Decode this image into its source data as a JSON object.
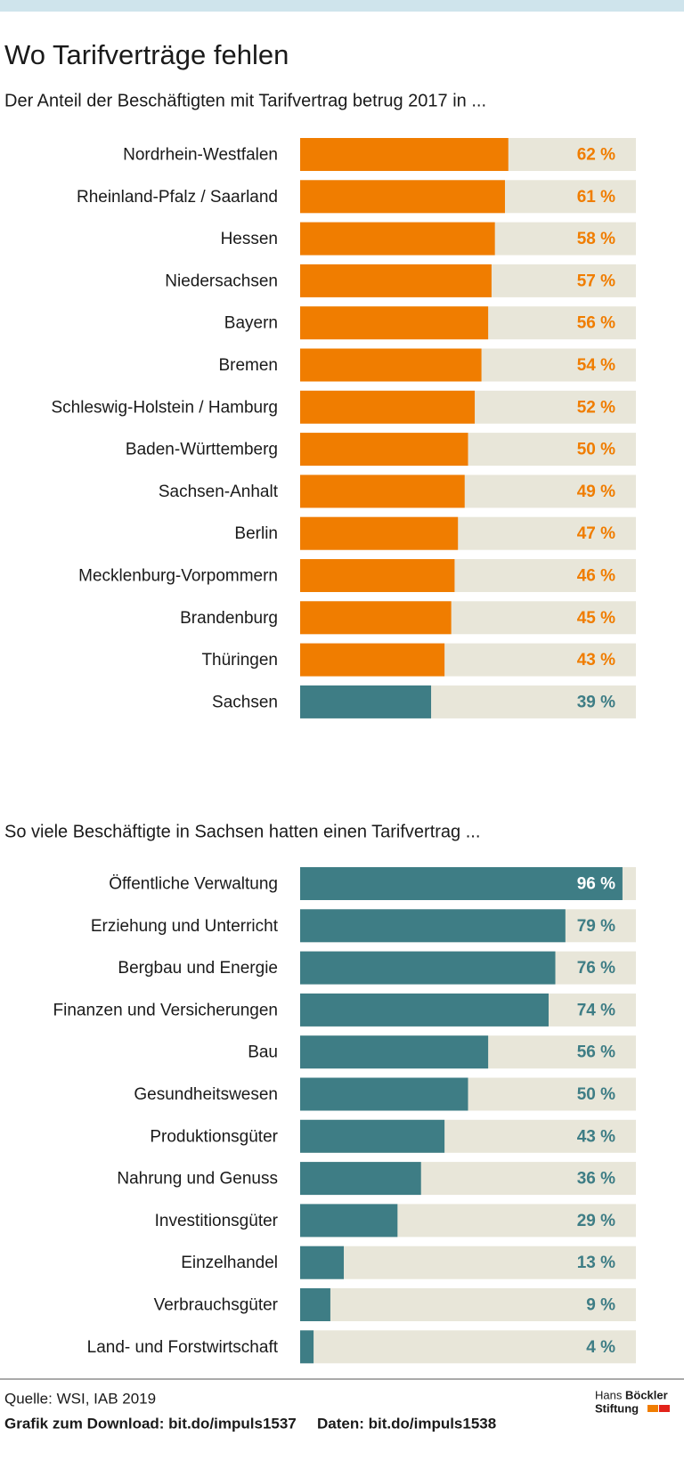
{
  "header": {
    "title": "Wo Tarifverträge fehlen"
  },
  "chart_data": [
    {
      "type": "bar",
      "orientation": "horizontal",
      "title": "Der Anteil der Beschäftigten mit Tarifvertrag betrug 2017 in ...",
      "categories": [
        "Nordrhein-Westfalen",
        "Rheinland-Pfalz / Saarland",
        "Hessen",
        "Niedersachsen",
        "Bayern",
        "Bremen",
        "Schleswig-Holstein / Hamburg",
        "Baden-Württemberg",
        "Sachsen-Anhalt",
        "Berlin",
        "Mecklenburg-Vorpommern",
        "Brandenburg",
        "Thüringen",
        "Sachsen"
      ],
      "values": [
        62,
        61,
        58,
        57,
        56,
        54,
        52,
        50,
        49,
        47,
        46,
        45,
        43,
        39
      ],
      "value_labels": [
        "62 %",
        "61 %",
        "58 %",
        "57 %",
        "56 %",
        "54 %",
        "52 %",
        "50 %",
        "49 %",
        "47 %",
        "46 %",
        "45 %",
        "43 %",
        "39 %"
      ],
      "colors": [
        "#f07d00",
        "#f07d00",
        "#f07d00",
        "#f07d00",
        "#f07d00",
        "#f07d00",
        "#f07d00",
        "#f07d00",
        "#f07d00",
        "#f07d00",
        "#f07d00",
        "#f07d00",
        "#f07d00",
        "#3e7d85"
      ],
      "track_color": "#e8e6d9",
      "xlim": [
        0,
        100
      ]
    },
    {
      "type": "bar",
      "orientation": "horizontal",
      "title": "So viele Beschäftigte in Sachsen hatten einen Tarifvertrag ...",
      "categories": [
        "Öffentliche Verwaltung",
        "Erziehung und Unterricht",
        "Bergbau und Energie",
        "Finanzen und Versicherungen",
        "Bau",
        "Gesundheitswesen",
        "Produktionsgüter",
        "Nahrung und Genuss",
        "Investitionsgüter",
        "Einzelhandel",
        "Verbrauchsgüter",
        "Land- und Forstwirtschaft"
      ],
      "values": [
        96,
        79,
        76,
        74,
        56,
        50,
        43,
        36,
        29,
        13,
        9,
        4
      ],
      "value_labels": [
        "96 %",
        "79 %",
        "76 %",
        "74 %",
        "56 %",
        "50 %",
        "43 %",
        "36 %",
        "29 %",
        "13 %",
        "9 %",
        "4 %"
      ],
      "colors": [
        "#3e7d85",
        "#3e7d85",
        "#3e7d85",
        "#3e7d85",
        "#3e7d85",
        "#3e7d85",
        "#3e7d85",
        "#3e7d85",
        "#3e7d85",
        "#3e7d85",
        "#3e7d85",
        "#3e7d85"
      ],
      "track_color": "#e8e6d9",
      "xlim": [
        0,
        100
      ]
    }
  ],
  "footer": {
    "source": "Quelle: WSI, IAB 2019",
    "download": "Grafik zum Download: bit.do/impuls1537",
    "data": "Daten: bit.do/impuls1538",
    "logo": [
      "Hans",
      "Böckler",
      "Stiftung"
    ]
  }
}
